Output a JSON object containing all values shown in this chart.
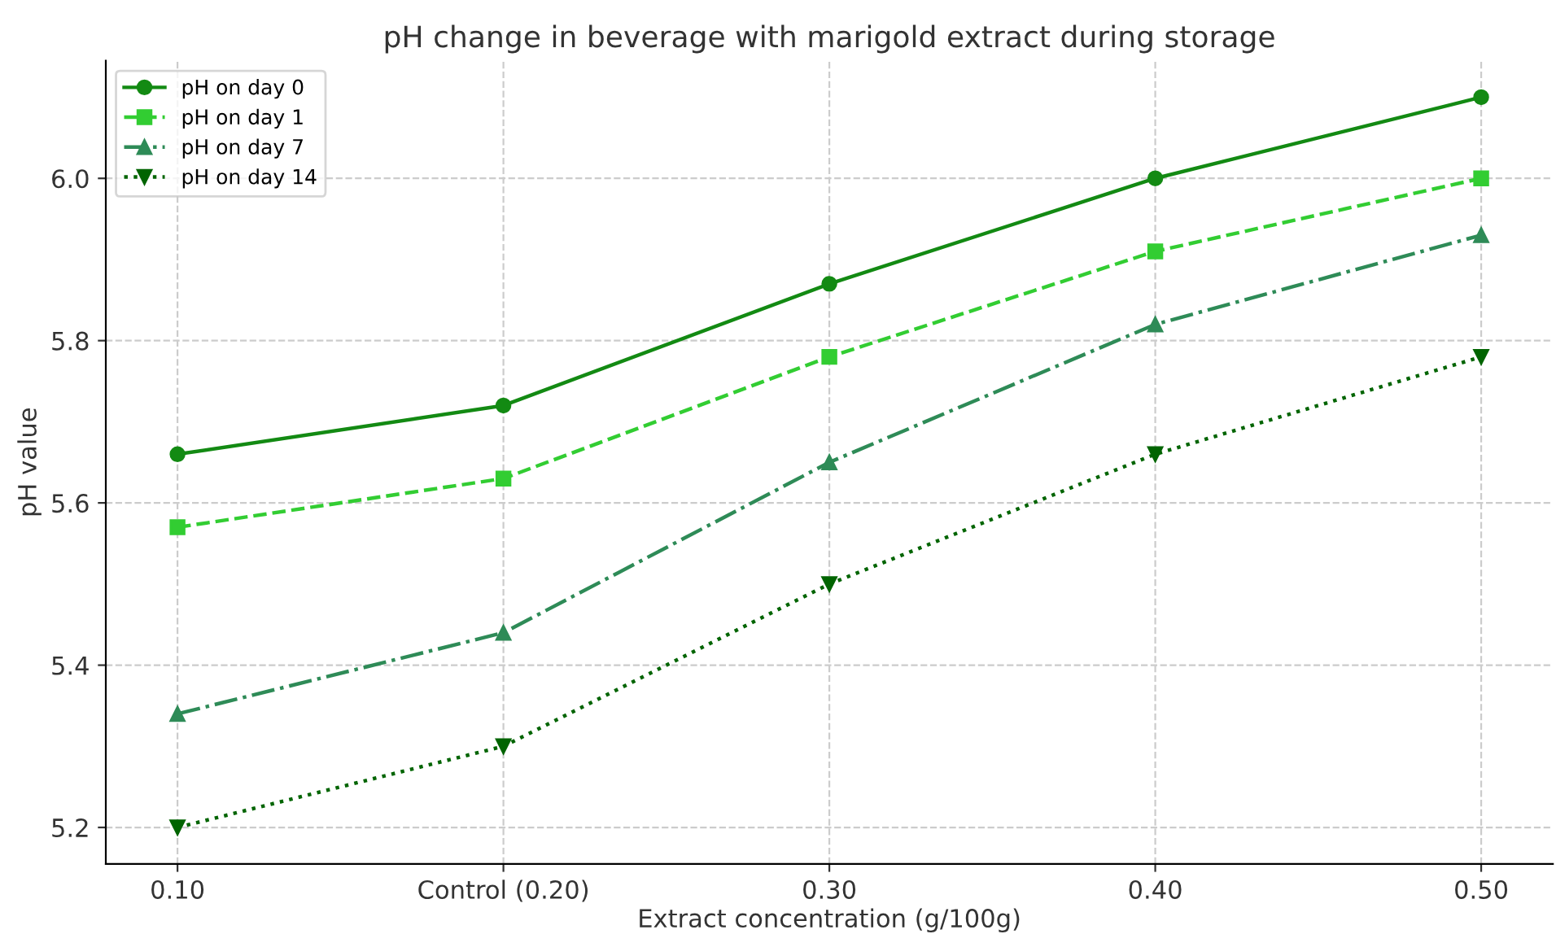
{
  "chart_data": {
    "type": "line",
    "title": "pH change in beverage with marigold extract during storage",
    "xlabel": "Extract concentration (g/100g)",
    "ylabel": "pH value",
    "categories": [
      "0.10",
      "Control (0.20)",
      "0.30",
      "0.40",
      "0.50"
    ],
    "series": [
      {
        "name": "pH on day 0",
        "color": "#138a13",
        "values": [
          5.66,
          5.72,
          5.87,
          6.0,
          6.1
        ],
        "marker": "circle",
        "line_style": "solid"
      },
      {
        "name": "pH on day 1",
        "color": "#32cd32",
        "values": [
          5.57,
          5.63,
          5.78,
          5.91,
          6.0
        ],
        "marker": "square",
        "line_style": "dashed"
      },
      {
        "name": "pH on day 7",
        "color": "#2e8b57",
        "values": [
          5.34,
          5.44,
          5.65,
          5.82,
          5.93
        ],
        "marker": "triangle",
        "line_style": "dashdot"
      },
      {
        "name": "pH on day 14",
        "color": "#006400",
        "values": [
          5.2,
          5.3,
          5.5,
          5.66,
          5.78
        ],
        "marker": "triangle_down",
        "line_style": "dotted"
      }
    ],
    "ylim": [
      5.155,
      6.145
    ],
    "yticks": [
      {
        "value": 5.2,
        "label": "5.2"
      },
      {
        "value": 5.4,
        "label": "5.4"
      },
      {
        "value": 5.6,
        "label": "5.6"
      },
      {
        "value": 5.8,
        "label": "5.8"
      },
      {
        "value": 6.0,
        "label": "6.0"
      }
    ],
    "grid": true,
    "legend": "top left"
  }
}
